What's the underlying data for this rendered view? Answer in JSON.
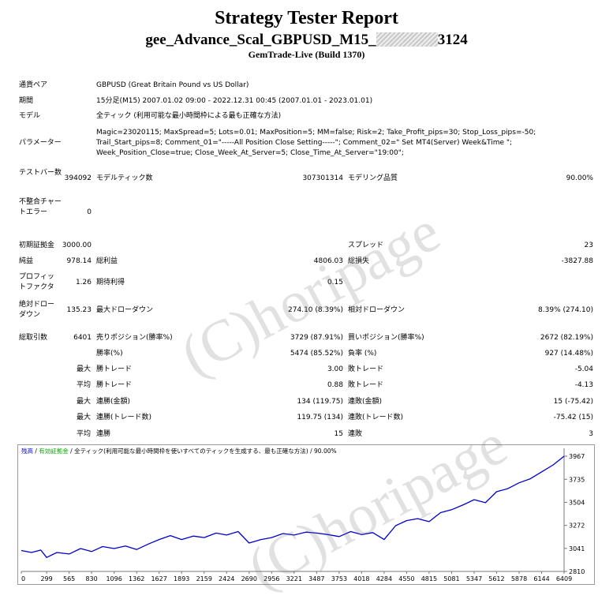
{
  "header": {
    "title": "Strategy Tester Report",
    "name_prefix": "gee_Advance_Scal_GBPUSD_M15_",
    "name_suffix": "3124",
    "server": "GemTrade-Live (Build 1370)"
  },
  "info": {
    "pair_label": "通貨ペア",
    "pair_value": "GBPUSD (Great Britain Pound vs US Dollar)",
    "period_label": "期間",
    "period_value": "15分足(M15) 2007.01.02 09:00 - 2022.12.31 00:45 (2007.01.01 - 2023.01.01)",
    "model_label": "モデル",
    "model_value": "全ティック (利用可能な最小時間枠による最も正確な方法)",
    "params_label": "パラメーター",
    "params_line1": "Magic=23020115; MaxSpread=5; Lots=0.01; MaxPosition=5; MM=false; Risk=2; Take_Profit_pips=30; Stop_Loss_pips=-50;",
    "params_line2": "Trail_Start_pips=8; Comment_01=\"-----All Position Close Setting-----\"; Comment_02=\" Set MT4(Server) Week&Time \";",
    "params_line3": "Week_Position_Close=true; Close_Week_At_Server=5; Close_Time_At_Server=\"19:00\";"
  },
  "stats": {
    "bars_label": "テストバー数",
    "bars_value": "394092",
    "ticks_label": "モデルティック数",
    "ticks_value": "307301314",
    "quality_label": "モデリング品質",
    "quality_value": "90.00%",
    "mismatch_label": "不整合チャートエラー",
    "mismatch_value": "0",
    "deposit_label": "初期証拠金",
    "deposit_value": "3000.00",
    "spread_label": "スプレッド",
    "spread_value": "23",
    "net_label": "純益",
    "net_value": "978.14",
    "gross_profit_label": "総利益",
    "gross_profit_value": "4806.03",
    "gross_loss_label": "総損失",
    "gross_loss_value": "-3827.88",
    "pf_label": "プロフィットファクタ",
    "pf_value": "1.26",
    "expected_label": "期待利得",
    "expected_value": "0.15",
    "abs_dd_label": "絶対ドローダウン",
    "abs_dd_value": "135.23",
    "max_dd_label": "最大ドローダウン",
    "max_dd_value": "274.10 (8.39%)",
    "rel_dd_label": "相対ドローダウン",
    "rel_dd_value": "8.39% (274.10)",
    "total_trades_label": "総取引数",
    "total_trades_value": "6401",
    "short_label": "売りポジション(勝率%)",
    "short_value": "3729 (87.91%)",
    "long_label": "買いポジション(勝率%)",
    "long_value": "2672 (82.19%)",
    "win_rate_label": "勝率(%)",
    "win_rate_value": "5474 (85.52%)",
    "loss_rate_label": "負率 (%)",
    "loss_rate_value": "927 (14.48%)",
    "max_word": "最大",
    "avg_word": "平均",
    "largest_win_label": "勝トレード",
    "largest_win_value": "3.00",
    "largest_loss_label": "敗トレード",
    "largest_loss_value": "-5.04",
    "avg_win_label": "勝トレード",
    "avg_win_value": "0.88",
    "avg_loss_label": "敗トレード",
    "avg_loss_value": "-4.13",
    "cons_wins_amt_label": "連勝(金額)",
    "cons_wins_amt_value": "134 (119.75)",
    "cons_losses_amt_label": "連敗(金額)",
    "cons_losses_amt_value": "15 (-75.42)",
    "cons_profit_label": "連勝(トレード数)",
    "cons_profit_value": "119.75 (134)",
    "cons_loss_label": "連敗(トレード数)",
    "cons_loss_value": "-75.42 (15)",
    "avg_cons_wins_label": "連勝",
    "avg_cons_wins_value": "15",
    "avg_cons_losses_label": "連敗",
    "avg_cons_losses_value": "3"
  },
  "watermark": {
    "text": "(C)horipage"
  },
  "chart_data": {
    "type": "line",
    "legend": {
      "balance": "残高",
      "sep": " / ",
      "equity": "有効証拠金",
      "rest": " / 全ティック(利用可能な最小時間枠を使いすべてのティックを生成する、最も正確な方法) / 90.00%"
    },
    "x_ticks": [
      "0",
      "299",
      "565",
      "830",
      "1096",
      "1362",
      "1627",
      "1893",
      "2159",
      "2424",
      "2690",
      "2956",
      "3221",
      "3487",
      "3753",
      "4018",
      "4284",
      "4550",
      "4815",
      "5081",
      "5347",
      "5612",
      "5878",
      "6144",
      "6409"
    ],
    "y_ticks": [
      "3967",
      "3735",
      "3504",
      "3272",
      "3041",
      "2810"
    ],
    "ylim": [
      2810,
      3967
    ],
    "xlim": [
      0,
      6409
    ],
    "color": "#0000cc",
    "series": [
      {
        "x": [
          0,
          120,
          230,
          299,
          420,
          565,
          700,
          830,
          960,
          1096,
          1230,
          1362,
          1500,
          1627,
          1760,
          1893,
          2030,
          2159,
          2300,
          2424,
          2560,
          2690,
          2830,
          2956,
          3090,
          3221,
          3360,
          3487,
          3620,
          3753,
          3890,
          4018,
          4150,
          4284,
          4420,
          4550,
          4680,
          4815,
          4950,
          5081,
          5220,
          5347,
          5480,
          5612,
          5740,
          5878,
          6010,
          6144,
          6280,
          6409
        ],
        "values": [
          3020,
          3000,
          3025,
          2950,
          3000,
          2985,
          3040,
          3010,
          3060,
          3040,
          3065,
          3030,
          3085,
          3130,
          3170,
          3130,
          3165,
          3150,
          3195,
          3175,
          3210,
          3095,
          3130,
          3150,
          3190,
          3175,
          3205,
          3195,
          3180,
          3160,
          3210,
          3180,
          3200,
          3130,
          3270,
          3320,
          3340,
          3310,
          3400,
          3430,
          3480,
          3530,
          3500,
          3610,
          3640,
          3700,
          3740,
          3810,
          3880,
          3967
        ]
      }
    ]
  }
}
